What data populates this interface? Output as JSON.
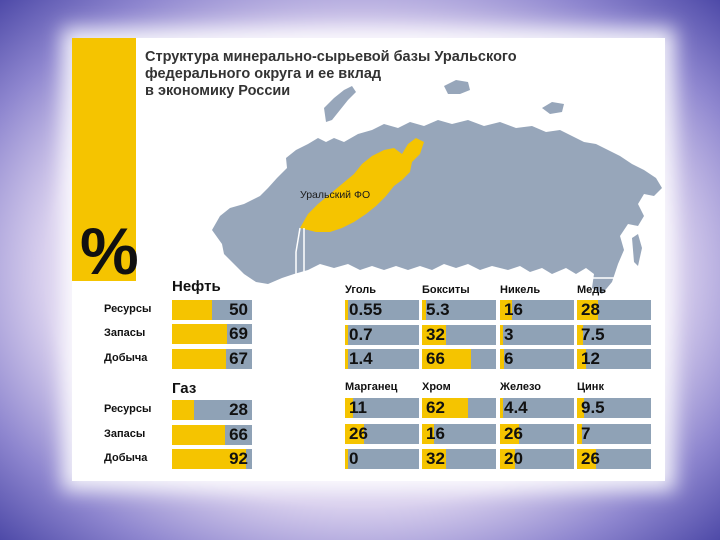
{
  "title": {
    "line1": "Структура минерально-сырьевой базы Уральского",
    "line2": "федерального округа и ее вклад",
    "line3": "в экономику России"
  },
  "percent_sign": "%",
  "map": {
    "region_label": "Уральский ФО"
  },
  "colors": {
    "accent": "#f5c400",
    "bar_bg": "#8fa2b6",
    "map": "#97a6ba"
  },
  "chart_data": [
    {
      "type": "bar",
      "title": "Нефть",
      "categories": [
        "Ресурсы",
        "Запасы",
        "Добыча"
      ],
      "values": [
        50,
        69,
        67
      ],
      "unit": "%"
    },
    {
      "type": "bar",
      "title": "Газ",
      "categories": [
        "Ресурсы",
        "Запасы",
        "Добыча"
      ],
      "values": [
        28,
        66,
        92
      ],
      "unit": "%"
    },
    {
      "type": "table",
      "minerals": [
        {
          "name": "Уголь",
          "values": [
            "0.55",
            "0.7",
            "1.4"
          ]
        },
        {
          "name": "Бокситы",
          "values": [
            "5.3",
            "32",
            "66"
          ]
        },
        {
          "name": "Никель",
          "values": [
            "16",
            "3",
            "6"
          ]
        },
        {
          "name": "Медь",
          "values": [
            "28",
            "7.5",
            "12"
          ]
        },
        {
          "name": "Марганец",
          "values": [
            "11",
            "26",
            "0"
          ]
        },
        {
          "name": "Хром",
          "values": [
            "62",
            "16",
            "32"
          ]
        },
        {
          "name": "Железо",
          "values": [
            "4.4",
            "26",
            "20"
          ]
        },
        {
          "name": "Цинк",
          "values": [
            "9.5",
            "7",
            "26"
          ]
        }
      ]
    }
  ]
}
